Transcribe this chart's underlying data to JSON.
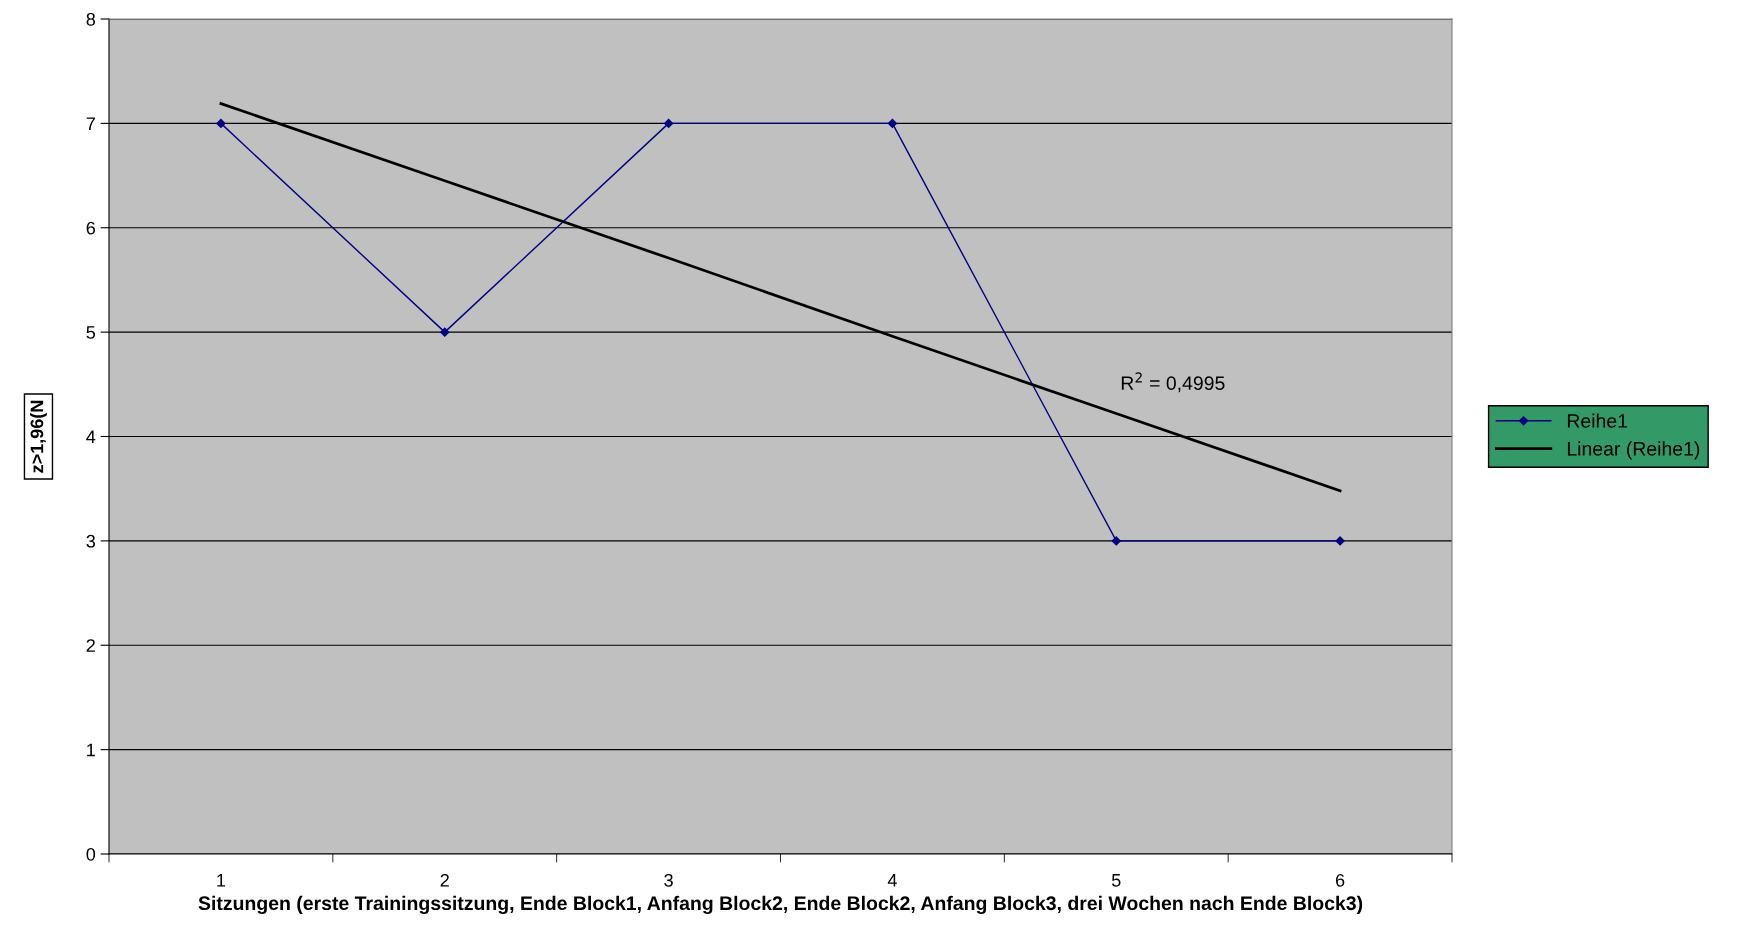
{
  "chart_data": {
    "type": "line",
    "xlabel": "Sitzungen (erste Trainingssitzung, Ende Block1, Anfang Block2, Ende Block2, Anfang Block3, drei Wochen nach Ende Block3)",
    "ylabel": "z>1,96(N",
    "categories": [
      "1",
      "2",
      "3",
      "4",
      "5",
      "6"
    ],
    "series": [
      {
        "name": "Reihe1",
        "color": "#000080",
        "values": [
          7,
          5,
          7,
          7,
          3,
          3
        ],
        "marker": "diamond"
      },
      {
        "name": "Linear (Reihe1)",
        "color": "#000000",
        "values": [
          7.19,
          6.45,
          5.71,
          4.96,
          4.22,
          3.48
        ],
        "marker": "none"
      }
    ],
    "ylim": [
      0,
      8
    ],
    "yticks": [
      0,
      1,
      2,
      3,
      4,
      5,
      6,
      7,
      8
    ],
    "grid": "y",
    "legend": "right",
    "annotations": [
      "R$^{2}$ = 0,4995"
    ]
  }
}
